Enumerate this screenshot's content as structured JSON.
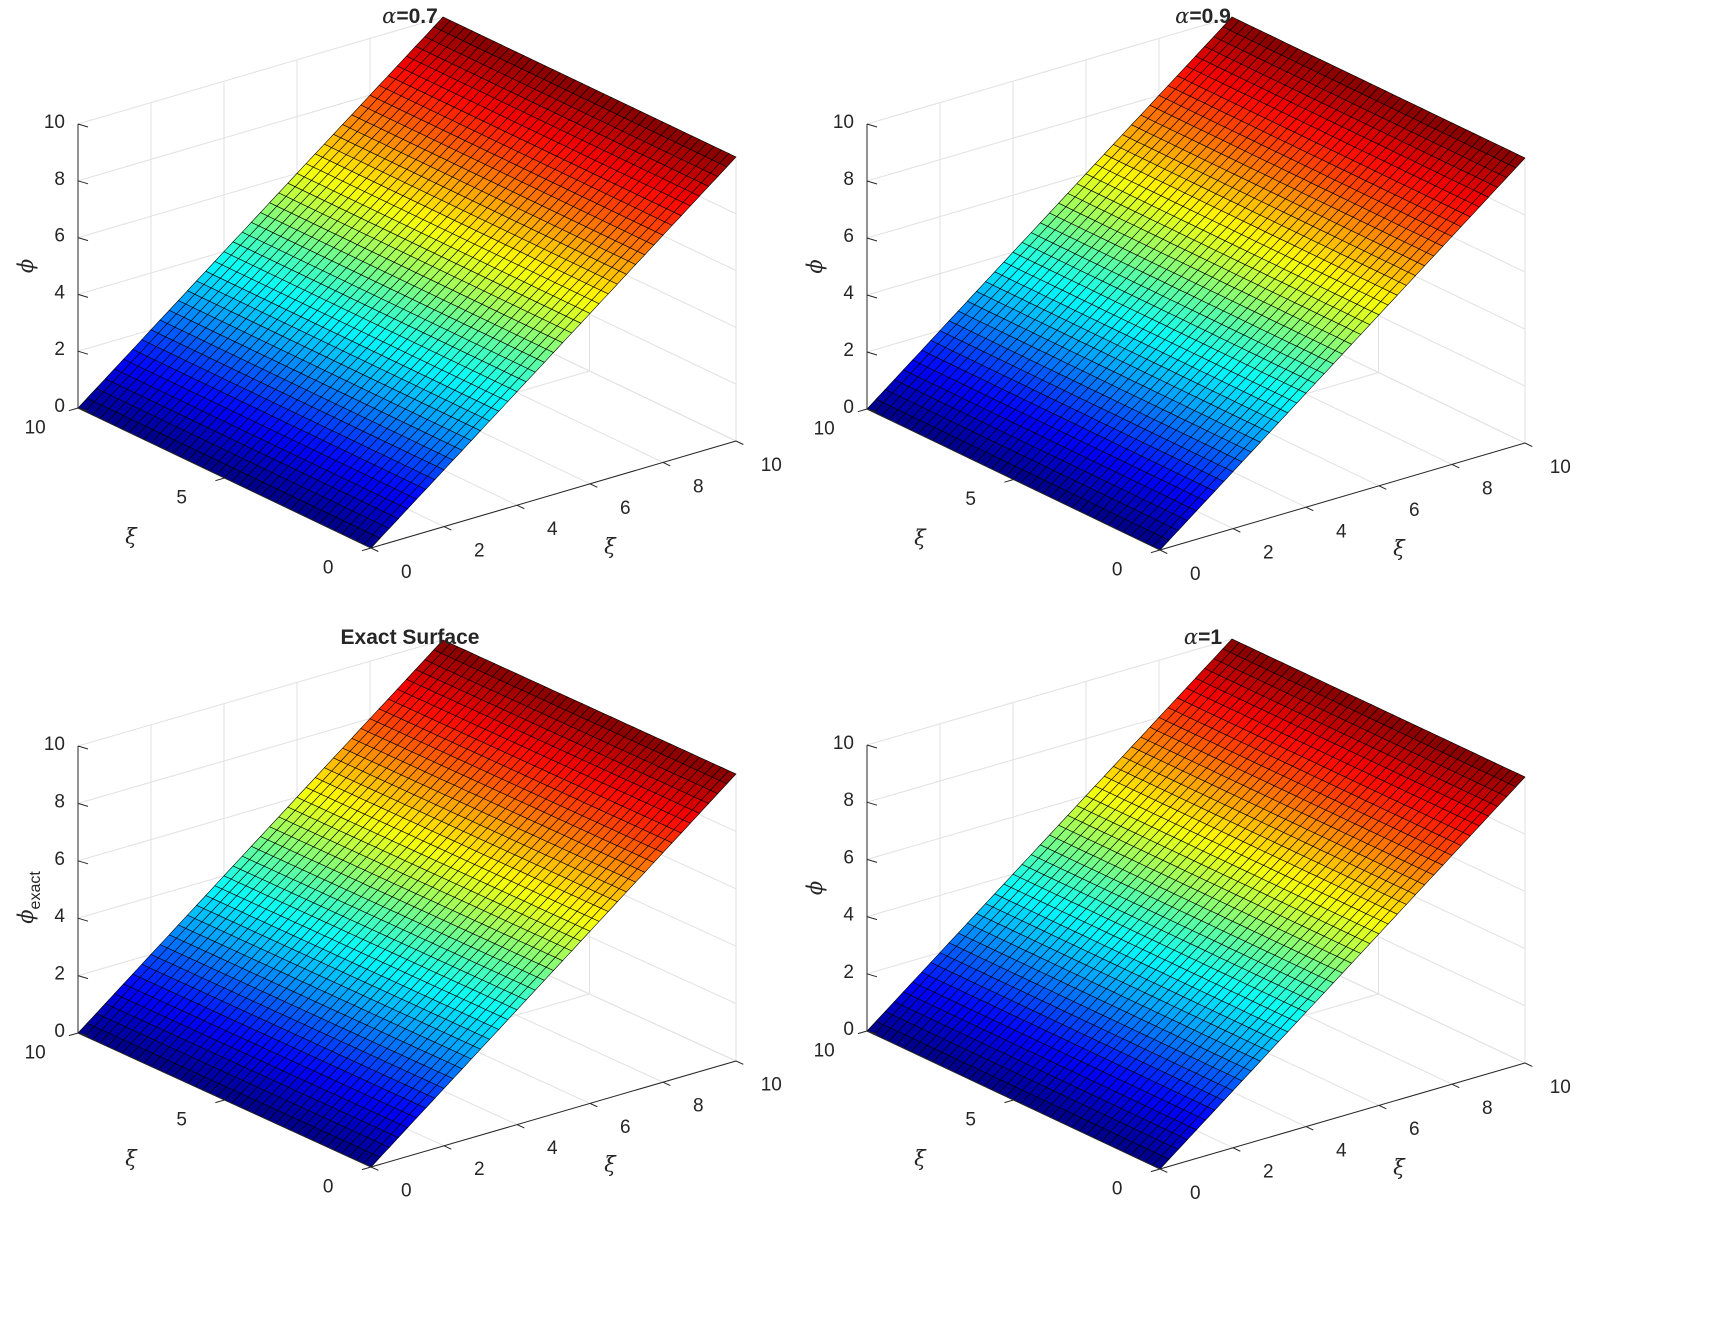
{
  "figure": {
    "background": "#ffffff",
    "colormap": "jet",
    "edge_color": "#000000"
  },
  "chart_data": [
    {
      "type": "surface",
      "title": "α=0.7",
      "title_prefix": "α",
      "title_rest": "=0.7",
      "zlabel": "ϕ",
      "zlabel_sub": "",
      "xlabel": "ξ",
      "ylabel": "ξ",
      "xlim": [
        0,
        10
      ],
      "ylim": [
        0,
        10
      ],
      "zlim": [
        0,
        10
      ],
      "x_ticks": [
        "0",
        "2",
        "4",
        "6",
        "8",
        "10"
      ],
      "y_ticks": [
        "0",
        "5",
        "10"
      ],
      "z_ticks": [
        "0",
        "2",
        "4",
        "6",
        "8",
        "10"
      ],
      "z_at_x0": 0,
      "z_at_x10": 10,
      "grid": true,
      "mesh": {
        "nx": 40,
        "ny": 40
      }
    },
    {
      "type": "surface",
      "title": "α=0.9",
      "title_prefix": "α",
      "title_rest": "=0.9",
      "zlabel": "ϕ",
      "zlabel_sub": "",
      "xlabel": "ξ",
      "ylabel": "ξ",
      "xlim": [
        0,
        10
      ],
      "ylim": [
        0,
        10
      ],
      "zlim": [
        0,
        10
      ],
      "x_ticks": [
        "0",
        "2",
        "4",
        "6",
        "8",
        "10"
      ],
      "y_ticks": [
        "0",
        "5",
        "10"
      ],
      "z_ticks": [
        "0",
        "2",
        "4",
        "6",
        "8",
        "10"
      ],
      "z_at_x0": 0,
      "z_at_x10": 10,
      "grid": true,
      "mesh": {
        "nx": 40,
        "ny": 40
      }
    },
    {
      "type": "surface",
      "title": "Exact Surface",
      "title_prefix": "",
      "title_rest": "Exact Surface",
      "zlabel": "ϕ",
      "zlabel_sub": "exact",
      "xlabel": "ξ",
      "ylabel": "ξ",
      "xlim": [
        0,
        10
      ],
      "ylim": [
        0,
        10
      ],
      "zlim": [
        0,
        10
      ],
      "x_ticks": [
        "0",
        "2",
        "4",
        "6",
        "8",
        "10"
      ],
      "y_ticks": [
        "0",
        "5",
        "10"
      ],
      "z_ticks": [
        "0",
        "2",
        "4",
        "6",
        "8",
        "10"
      ],
      "z_at_x0": 0,
      "z_at_x10": 10,
      "grid": true,
      "mesh": {
        "nx": 40,
        "ny": 40
      }
    },
    {
      "type": "surface",
      "title": "α=1",
      "title_prefix": "α",
      "title_rest": "=1",
      "zlabel": "ϕ",
      "zlabel_sub": "",
      "xlabel": "ξ",
      "ylabel": "ξ",
      "xlim": [
        0,
        10
      ],
      "ylim": [
        0,
        10
      ],
      "zlim": [
        0,
        10
      ],
      "x_ticks": [
        "0",
        "2",
        "4",
        "6",
        "8",
        "10"
      ],
      "y_ticks": [
        "0",
        "5",
        "10"
      ],
      "z_ticks": [
        "0",
        "2",
        "4",
        "6",
        "8",
        "10"
      ],
      "z_at_x0": 0,
      "z_at_x10": 10,
      "grid": true,
      "mesh": {
        "nx": 40,
        "ny": 40
      }
    }
  ]
}
